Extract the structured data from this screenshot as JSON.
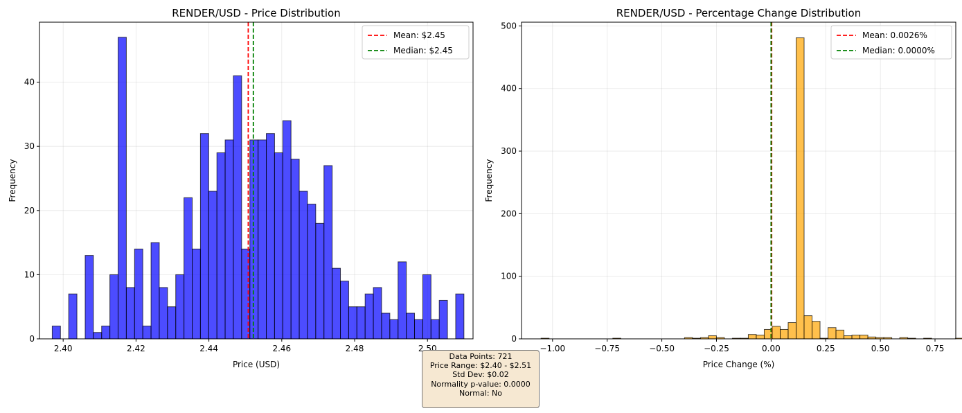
{
  "chart_data": [
    {
      "type": "bar",
      "subtype": "histogram",
      "title": "RENDER/USD - Price Distribution",
      "xlabel": "Price (USD)",
      "ylabel": "Frequency",
      "xlim": [
        2.3935,
        2.5125
      ],
      "ylim": [
        0,
        49.35
      ],
      "x_ticks": [
        2.4,
        2.42,
        2.44,
        2.46,
        2.48,
        2.5
      ],
      "x_tick_labels": [
        "2.40",
        "2.42",
        "2.44",
        "2.46",
        "2.48",
        "2.50"
      ],
      "y_ticks": [
        0,
        10,
        20,
        30,
        40
      ],
      "y_tick_labels": [
        "0",
        "10",
        "20",
        "30",
        "40"
      ],
      "bin_start": 2.397,
      "bin_width": 0.00226,
      "values": [
        2,
        0,
        7,
        0,
        13,
        1,
        2,
        10,
        47,
        8,
        14,
        2,
        15,
        8,
        5,
        10,
        22,
        14,
        32,
        23,
        29,
        31,
        41,
        14,
        31,
        31,
        32,
        29,
        34,
        28,
        23,
        21,
        18,
        27,
        11,
        9,
        5,
        5,
        7,
        8,
        4,
        3,
        12,
        4,
        3,
        10,
        3,
        6,
        0,
        7
      ],
      "bar_color": "#0000ff",
      "ref_lines": [
        {
          "label": "Mean: $2.45",
          "x": 2.4508,
          "color": "#ff0000"
        },
        {
          "label": "Median: $2.45",
          "x": 2.4522,
          "color": "#008000"
        }
      ],
      "legend": "top-right",
      "grid": true
    },
    {
      "type": "bar",
      "subtype": "histogram",
      "title": "RENDER/USD - Percentage Change Distribution",
      "xlabel": "Price Change (%)",
      "ylabel": "Frequency",
      "xlim": [
        -1.142,
        0.845
      ],
      "ylim": [
        0,
        506
      ],
      "x_ticks": [
        -1.0,
        -0.75,
        -0.5,
        -0.25,
        0.0,
        0.25,
        0.5,
        0.75
      ],
      "x_tick_labels": [
        "−1.00",
        "−0.75",
        "−0.50",
        "−0.25",
        "0.00",
        "0.25",
        "0.50",
        "0.75"
      ],
      "y_ticks": [
        0,
        100,
        200,
        300,
        400,
        500
      ],
      "y_tick_labels": [
        "0",
        "100",
        "200",
        "300",
        "400",
        "500"
      ],
      "bin_start": -1.0525,
      "bin_width": 0.03647,
      "values": [
        1,
        0,
        0,
        0,
        0,
        0,
        0,
        0,
        0,
        1,
        0,
        0,
        0,
        0,
        0,
        0,
        0,
        0,
        2,
        1,
        2,
        5,
        2,
        0,
        1,
        1,
        7,
        6,
        15,
        20,
        15,
        26,
        481,
        37,
        28,
        1,
        18,
        14,
        5,
        6,
        6,
        3,
        2,
        2,
        0,
        2,
        1,
        0,
        1,
        0,
        0,
        0,
        1,
        1
      ],
      "bar_color": "#ffa500",
      "ref_lines": [
        {
          "label": "Mean: 0.0026%",
          "x": 0.0026,
          "color": "#ff0000"
        },
        {
          "label": "Median: 0.0000%",
          "x": 0.0,
          "color": "#008000"
        }
      ],
      "legend": "top-right",
      "grid": true
    }
  ],
  "stats": {
    "data_points": "Data Points: 721",
    "price_range": "Price Range: $2.40 - $2.51",
    "std_dev": "Std Dev: $0.02",
    "normality": "Normality p-value: 0.0000",
    "normal": "Normal: No"
  }
}
